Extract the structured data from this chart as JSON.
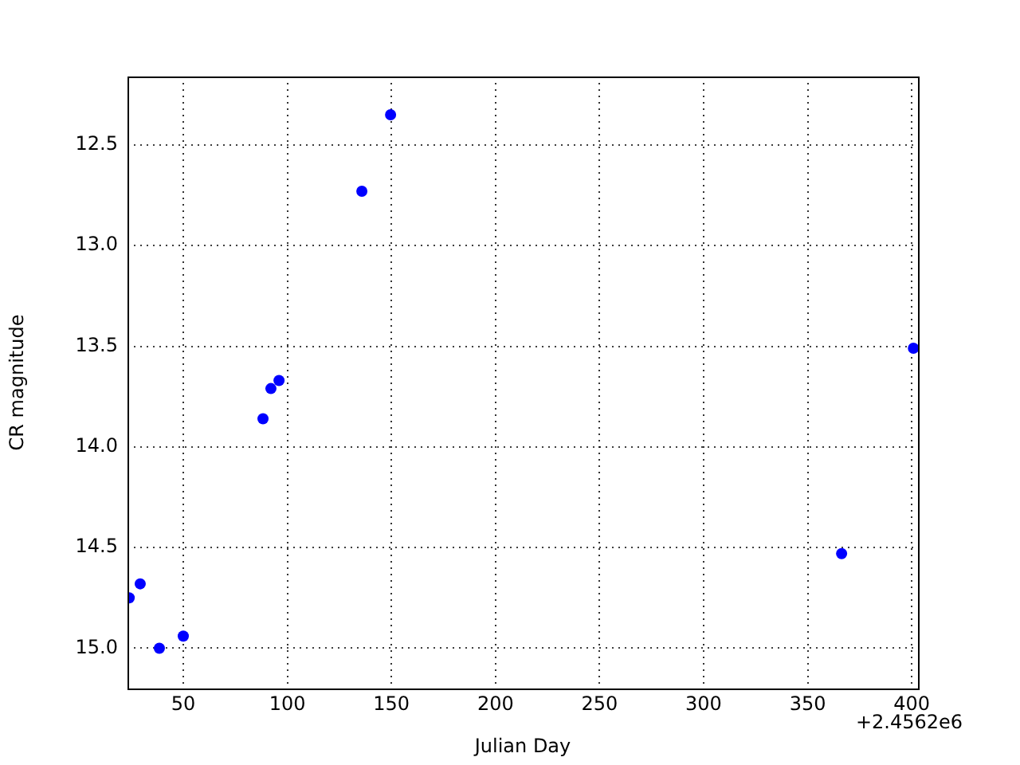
{
  "chart_data": {
    "type": "scatter",
    "xlabel": "Julian Day",
    "ylabel": "CR magnitude",
    "annotations": [
      "+2.4562e6"
    ],
    "x": [
      24.0,
      29.3,
      38.5,
      50.0,
      88.3,
      92.1,
      96.0,
      135.8,
      149.6,
      366.3,
      400.8
    ],
    "series": [
      {
        "color": "#0000ff",
        "values": [
          14.75,
          14.68,
          15.0,
          14.94,
          13.86,
          13.71,
          13.67,
          12.73,
          12.35,
          14.53,
          13.51
        ]
      }
    ],
    "xlim": [
      23.2,
      403
    ],
    "ylim": [
      15.2,
      12.16
    ],
    "xticks": [
      50,
      100,
      150,
      200,
      250,
      300,
      350,
      400
    ],
    "yticks": [
      12.5,
      {
        "value": 13,
        "label": "13.0"
      },
      13.5,
      {
        "value": 14,
        "label": "14.0"
      },
      14.5,
      {
        "value": 15,
        "label": "15.0"
      }
    ],
    "grid": true,
    "legend": false,
    "marker": "circle"
  }
}
